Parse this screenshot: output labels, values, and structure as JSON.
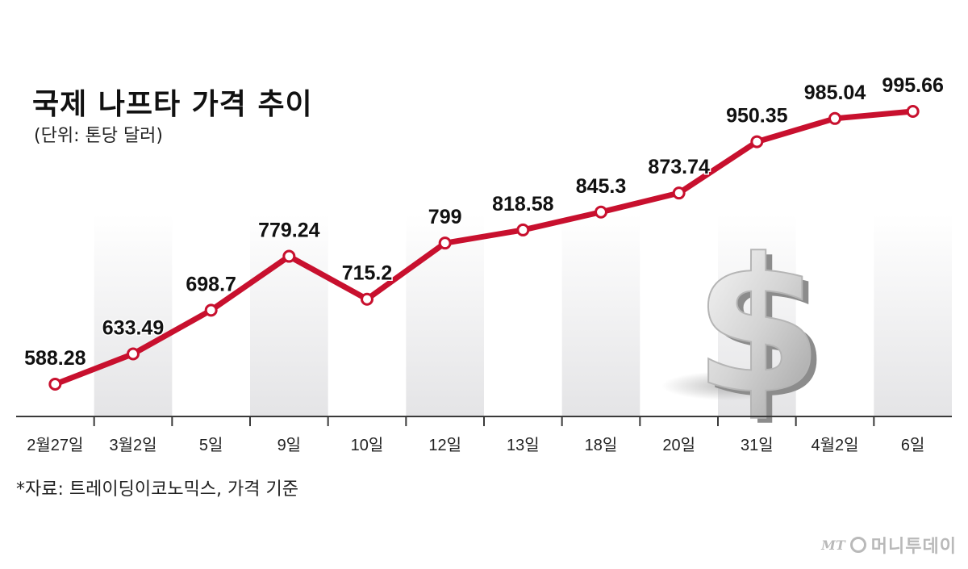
{
  "chart_data": {
    "type": "line",
    "title": "국제 나프타 가격 추이",
    "unit": "(단위: 톤당 달러)",
    "categories": [
      "2월27일",
      "3월2일",
      "5일",
      "9일",
      "10일",
      "12일",
      "13일",
      "18일",
      "20일",
      "31일",
      "4월2일",
      "6일"
    ],
    "series": [
      {
        "values": [
          588.28,
          633.49,
          698.7,
          779.24,
          715.2,
          799,
          818.58,
          845.3,
          873.74,
          950.35,
          985.04,
          995.66
        ],
        "labels": [
          "588.28",
          "633.49",
          "698.7",
          "779.24",
          "715.2",
          "799",
          "818.58",
          "845.3",
          "873.74",
          "950.35",
          "985.04",
          "995.66"
        ]
      }
    ],
    "line_color": "#c8102e",
    "source": "*자료: 트레이딩이코노믹스, 가격 기준",
    "grid": false
  },
  "logo": {
    "mt": "MT",
    "name": "머니투데이"
  }
}
